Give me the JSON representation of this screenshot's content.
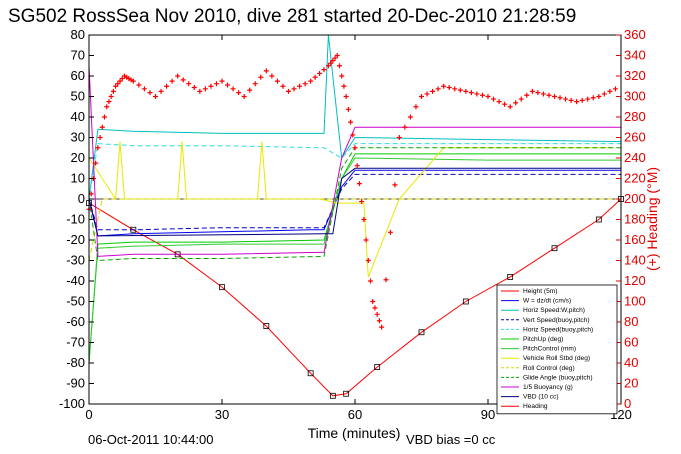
{
  "chart_data": {
    "type": "line",
    "title": "SG502 RossSea Nov 2010, dive 281 started 20-Dec-2010 21:28:59",
    "xlabel": "Time (minutes)",
    "ylabel": "",
    "ylabel_right": "(+) Heading (°M)",
    "xlim": [
      0,
      120
    ],
    "ylim": [
      -100,
      80
    ],
    "ylim_right": [
      0,
      360
    ],
    "x_ticks": [
      0,
      30,
      60,
      90,
      120
    ],
    "y_ticks": [
      -100,
      -90,
      -80,
      -70,
      -60,
      -50,
      -40,
      -30,
      -20,
      -10,
      0,
      10,
      20,
      30,
      40,
      50,
      60,
      70,
      80
    ],
    "y_ticks_right": [
      0,
      20,
      40,
      60,
      80,
      100,
      120,
      140,
      160,
      180,
      200,
      220,
      240,
      260,
      280,
      300,
      320,
      340,
      360
    ],
    "grid": false,
    "legend_position": "bottom-right",
    "colors": {
      "height": "#ff0000",
      "w": "#0000ff",
      "horiz_speed": "#00bfbf",
      "vert_speed_buoy": "#0000bf",
      "horiz_speed_buoy": "#33dddd",
      "pitch_up": "#00cc00",
      "pitch_control": "#33cc33",
      "vehicle_roll": "#e8e800",
      "roll_control": "#d6d600",
      "glide_angle": "#00aa00",
      "buoyancy": "#cc00cc",
      "vbd": "#000080",
      "heading": "#ff0000"
    },
    "series": [
      {
        "name": "Height (5m)",
        "x": [
          0,
          10,
          20,
          30,
          40,
          50,
          55,
          58,
          65,
          75,
          85,
          95,
          105,
          115,
          120
        ],
        "y": [
          -2,
          -15,
          -27,
          -43,
          -62,
          -85,
          -96,
          -95,
          -82,
          -65,
          -50,
          -38,
          -24,
          -10,
          0
        ]
      },
      {
        "name": "W = dz/dt (cm/s)",
        "x": [
          0,
          2,
          10,
          30,
          50,
          53,
          57,
          60,
          90,
          120
        ],
        "y": [
          0,
          -18,
          -17,
          -16,
          -15,
          -15,
          6,
          14,
          14,
          14
        ]
      },
      {
        "name": "Horiz Speed:W,pitch)",
        "x": [
          0,
          2,
          10,
          30,
          53,
          54,
          55,
          57,
          60,
          90,
          120
        ],
        "y": [
          0,
          34,
          33,
          32,
          32,
          80,
          60,
          20,
          30,
          29,
          28
        ]
      },
      {
        "name": "Vert Speed(buoy,pitch)",
        "x": [
          0,
          2,
          10,
          30,
          53,
          57,
          60,
          90,
          120
        ],
        "y": [
          0,
          -15,
          -15,
          -14,
          -14,
          5,
          12,
          12,
          12
        ]
      },
      {
        "name": "Horiz Speed(buoy,pitch)",
        "x": [
          0,
          2,
          10,
          30,
          53,
          57,
          60,
          90,
          120
        ],
        "y": [
          0,
          27,
          26,
          26,
          25,
          20,
          27,
          27,
          27
        ]
      },
      {
        "name": "PitchUp (deg)",
        "x": [
          0,
          2,
          10,
          30,
          53,
          57,
          60,
          90,
          120
        ],
        "y": [
          -80,
          -22,
          -21,
          -21,
          -20,
          10,
          22,
          22,
          22
        ]
      },
      {
        "name": "PitchControl (mm)",
        "x": [
          0,
          2,
          10,
          30,
          53,
          57,
          60,
          90,
          120
        ],
        "y": [
          -80,
          -24,
          -23,
          -22,
          -22,
          10,
          20,
          19,
          19
        ]
      },
      {
        "name": "Vehicle Roll Stbd (deg)",
        "x": [
          0,
          6,
          7,
          8,
          20,
          21,
          22,
          38,
          39,
          40,
          52,
          56,
          62,
          63,
          70,
          80,
          100,
          118
        ],
        "y": [
          20,
          0,
          28,
          0,
          0,
          28,
          0,
          0,
          28,
          0,
          0,
          -2,
          -2,
          -38,
          0,
          25,
          25,
          25
        ]
      },
      {
        "name": "Roll Control (deg)",
        "x": [
          0,
          3,
          53,
          57,
          120
        ],
        "y": [
          -30,
          0,
          0,
          0,
          0
        ]
      },
      {
        "name": "Glide Angle (buoy,pitch)",
        "x": [
          0,
          2,
          10,
          30,
          53,
          57,
          60,
          90,
          120
        ],
        "y": [
          0,
          -30,
          -29,
          -29,
          -28,
          15,
          25,
          25,
          25
        ]
      },
      {
        "name": "1/5 Buoyancy (g)",
        "x": [
          0,
          2,
          10,
          30,
          53,
          57,
          60,
          90,
          120
        ],
        "y": [
          65,
          -28,
          -27,
          -27,
          -26,
          20,
          35,
          35,
          35
        ]
      },
      {
        "name": "VBD (10 cc)",
        "x": [
          0,
          2,
          53,
          55,
          57,
          60,
          120
        ],
        "y": [
          0,
          -18,
          -17,
          -17,
          10,
          15,
          15
        ]
      },
      {
        "name": "Heading",
        "axis": "right",
        "marker": "+",
        "x": [
          0,
          2,
          4,
          6,
          8,
          10,
          15,
          20,
          25,
          30,
          35,
          40,
          45,
          50,
          54,
          56,
          58,
          60,
          62,
          64,
          66,
          70,
          75,
          80,
          85,
          90,
          95,
          100,
          105,
          110,
          115,
          120
        ],
        "y": [
          190,
          250,
          290,
          310,
          320,
          315,
          300,
          320,
          305,
          315,
          300,
          325,
          305,
          315,
          330,
          340,
          300,
          250,
          180,
          100,
          75,
          260,
          300,
          310,
          305,
          300,
          290,
          305,
          300,
          295,
          300,
          310
        ]
      }
    ],
    "footer_left": "06-Oct-2011 10:44:00",
    "footer_right": "VBD bias =0 cc"
  }
}
